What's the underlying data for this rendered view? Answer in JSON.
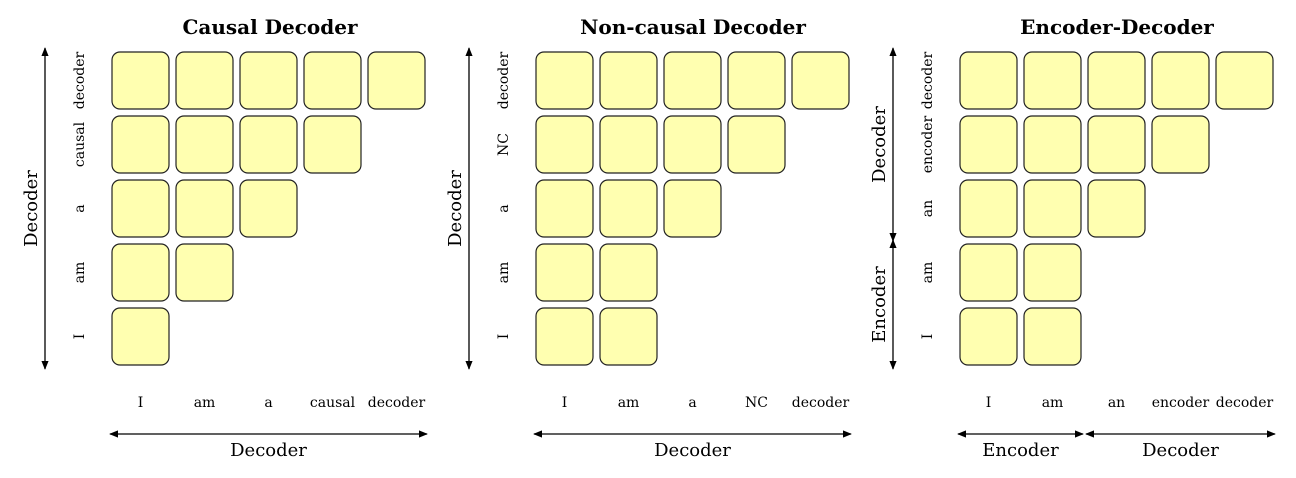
{
  "colors": {
    "cell_fill": "#ffffb0",
    "cell_stroke": "#222222",
    "line": "#000000"
  },
  "panels": [
    {
      "title": "Causal Decoder",
      "tokens": [
        "I",
        "am",
        "a",
        "causal",
        "decoder"
      ],
      "visible_prefix": 0,
      "x_sections": [
        {
          "label": "Decoder",
          "from": 0,
          "to": 4
        }
      ],
      "y_sections": [
        {
          "label": "Decoder",
          "from": 0,
          "to": 4
        }
      ]
    },
    {
      "title": "Non-causal Decoder",
      "tokens": [
        "I",
        "am",
        "a",
        "NC",
        "decoder"
      ],
      "visible_prefix": 2,
      "x_sections": [
        {
          "label": "Decoder",
          "from": 0,
          "to": 4
        }
      ],
      "y_sections": [
        {
          "label": "Decoder",
          "from": 0,
          "to": 4
        }
      ]
    },
    {
      "title": "Encoder-Decoder",
      "tokens": [
        "I",
        "am",
        "an",
        "encoder",
        "decoder"
      ],
      "visible_prefix": 2,
      "x_sections": [
        {
          "label": "Encoder",
          "from": 0,
          "to": 1
        },
        {
          "label": "Decoder",
          "from": 2,
          "to": 4
        }
      ],
      "y_sections": [
        {
          "label": "Encoder",
          "from": 0,
          "to": 1
        },
        {
          "label": "Decoder",
          "from": 2,
          "to": 4
        }
      ]
    }
  ]
}
